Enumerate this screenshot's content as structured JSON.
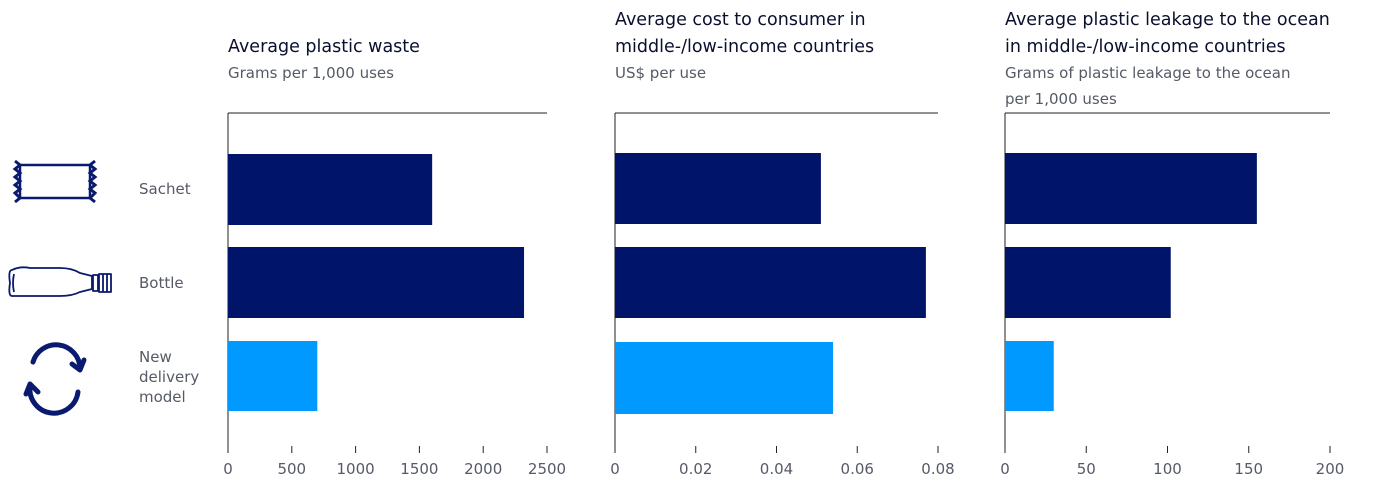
{
  "categories": [
    {
      "label_lines": [
        "Sachet"
      ],
      "icon": "sachet-icon"
    },
    {
      "label_lines": [
        "Bottle"
      ],
      "icon": "bottle-icon"
    },
    {
      "label_lines": [
        "New",
        "delivery",
        "model"
      ],
      "icon": "refresh-cycle-icon"
    }
  ],
  "colors": {
    "dark": "#00146a",
    "light": "#0099ff",
    "icon": "#0a1a6e"
  },
  "chart_data": [
    {
      "type": "bar",
      "orientation": "horizontal",
      "title_lines": [
        "Average plastic waste"
      ],
      "subtitle_lines": [
        "Grams per 1,000 uses"
      ],
      "categories": [
        "Sachet",
        "Bottle",
        "New delivery model"
      ],
      "values": [
        1600,
        2320,
        700
      ],
      "xlim": [
        0,
        2500
      ],
      "ticks": [
        0,
        500,
        1000,
        1500,
        2000,
        2500
      ],
      "tick_labels": [
        "0",
        "500",
        "1000",
        "1500",
        "2000",
        "2500"
      ],
      "bar_colors": [
        "#00146a",
        "#00146a",
        "#0099ff"
      ],
      "grid": false
    },
    {
      "type": "bar",
      "orientation": "horizontal",
      "title_lines": [
        "Average cost to consumer in",
        "middle-/low-income countries"
      ],
      "subtitle_lines": [
        "US$ per use"
      ],
      "categories": [
        "Sachet",
        "Bottle",
        "New delivery model"
      ],
      "values": [
        0.051,
        0.077,
        0.054
      ],
      "xlim": [
        0,
        0.08
      ],
      "ticks": [
        0,
        0.02,
        0.04,
        0.06,
        0.08
      ],
      "tick_labels": [
        "0",
        "0.02",
        "0.04",
        "0.06",
        "0.08"
      ],
      "bar_colors": [
        "#00146a",
        "#00146a",
        "#0099ff"
      ],
      "grid": false
    },
    {
      "type": "bar",
      "orientation": "horizontal",
      "title_lines": [
        "Average plastic leakage to the ocean",
        "in middle-/low-income countries"
      ],
      "subtitle_lines": [
        "Grams of plastic leakage to the ocean",
        "per 1,000 uses"
      ],
      "categories": [
        "Sachet",
        "Bottle",
        "New delivery model"
      ],
      "values": [
        155,
        102,
        30
      ],
      "xlim": [
        0,
        200
      ],
      "ticks": [
        0,
        50,
        100,
        150,
        200
      ],
      "tick_labels": [
        "0",
        "50",
        "100",
        "150",
        "200"
      ],
      "bar_colors": [
        "#00146a",
        "#00146a",
        "#0099ff"
      ],
      "grid": false
    }
  ]
}
